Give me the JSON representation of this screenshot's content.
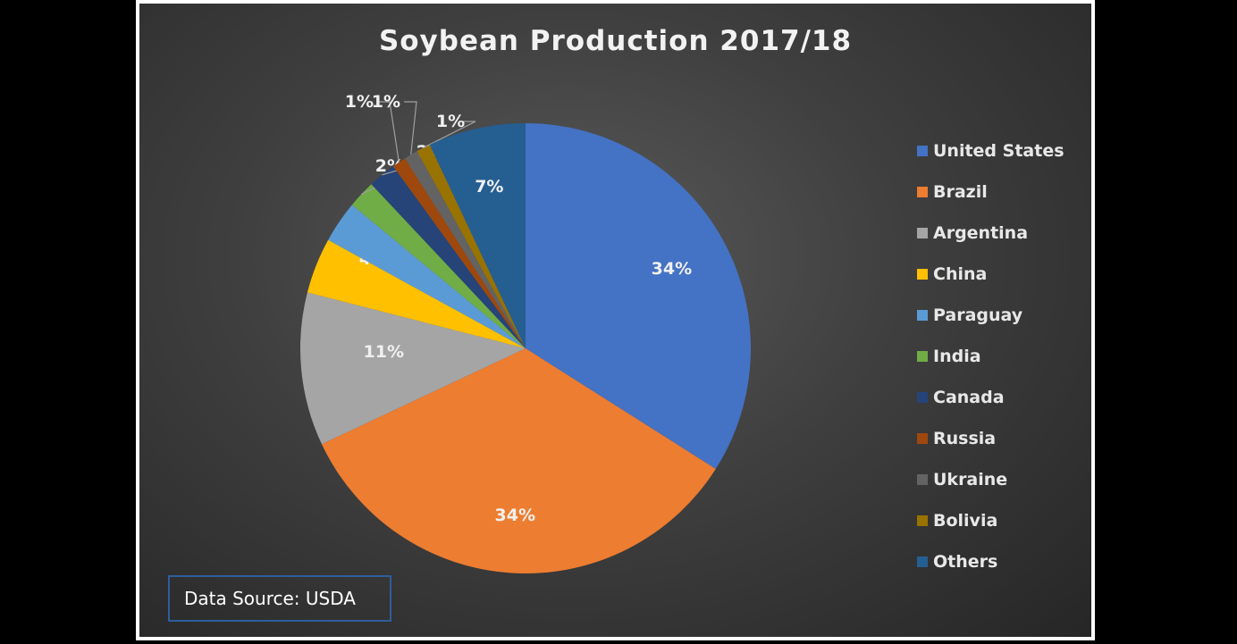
{
  "chart_data": {
    "type": "pie",
    "title": "Soybean Production 2017/18",
    "legend_position": "right",
    "slices": [
      {
        "label": "United States",
        "value": 34,
        "display": "34%",
        "color": "#4472C4"
      },
      {
        "label": "Brazil",
        "value": 34,
        "display": "34%",
        "color": "#ED7D31"
      },
      {
        "label": "Argentina",
        "value": 11,
        "display": "11%",
        "color": "#A5A5A5"
      },
      {
        "label": "China",
        "value": 4,
        "display": "4%",
        "color": "#FFC000"
      },
      {
        "label": "Paraguay",
        "value": 3,
        "display": "3%",
        "color": "#5B9BD5"
      },
      {
        "label": "India",
        "value": 2,
        "display": "2%",
        "color": "#70AD47"
      },
      {
        "label": "Canada",
        "value": 2,
        "display": "2%",
        "color": "#264478"
      },
      {
        "label": "Russia",
        "value": 1,
        "display": "1%",
        "color": "#9E480E"
      },
      {
        "label": "Ukraine",
        "value": 1,
        "display": "1%",
        "color": "#636363"
      },
      {
        "label": "Bolivia",
        "value": 1,
        "display": "1%",
        "color": "#997300"
      },
      {
        "label": "Others",
        "value": 7,
        "display": "7%",
        "color": "#255E91"
      }
    ]
  },
  "source_note": "Data Source: USDA"
}
